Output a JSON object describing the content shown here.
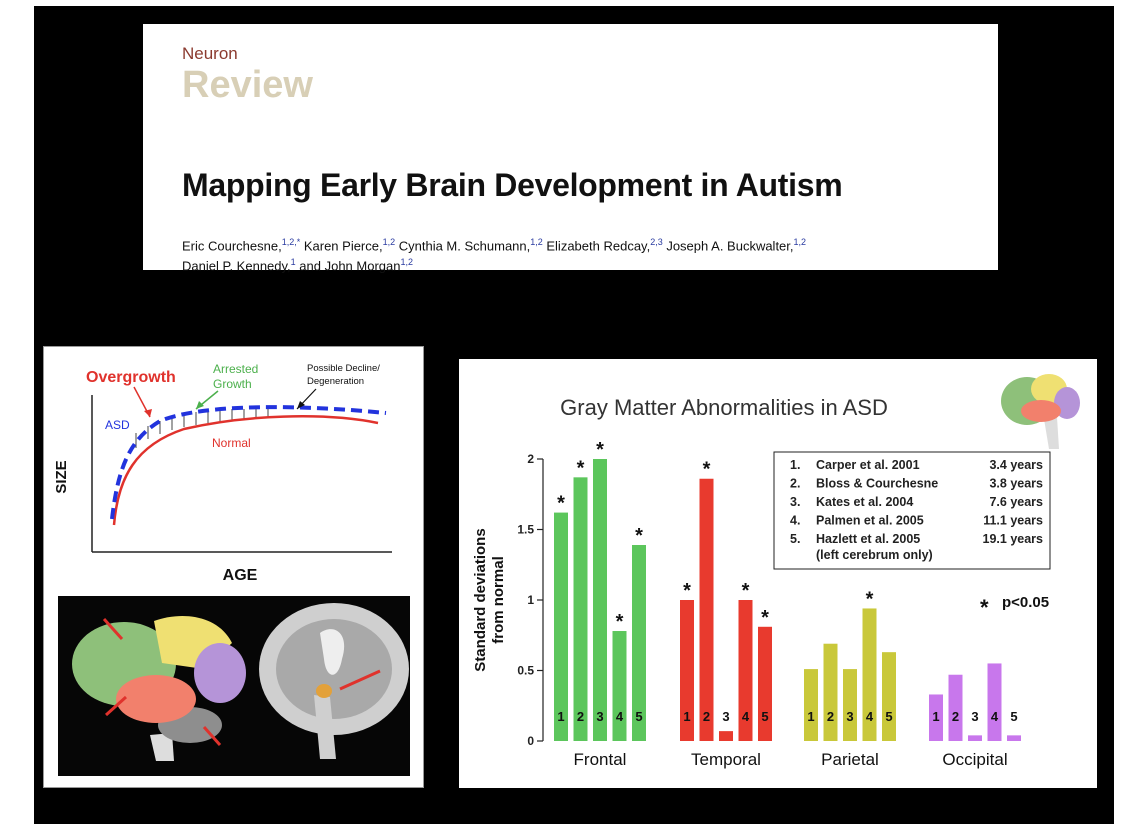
{
  "header": {
    "journal": "Neuron",
    "section": "Review",
    "title": "Mapping Early Brain Development in Autism",
    "authors_line1": [
      {
        "name": "Eric Courchesne,",
        "sup": "1,2,*"
      },
      {
        "name": " Karen Pierce,",
        "sup": "1,2"
      },
      {
        "name": " Cynthia M. Schumann,",
        "sup": "1,2"
      },
      {
        "name": " Elizabeth Redcay,",
        "sup": "2,3"
      },
      {
        "name": " Joseph A. Buckwalter,",
        "sup": "1,2"
      }
    ],
    "authors_line2": [
      {
        "name": "Daniel P. Kennedy,",
        "sup": "1"
      },
      {
        "name": " and John Morgan",
        "sup": "1,2"
      }
    ]
  },
  "growth_diagram": {
    "overgrowth_label": "Overgrowth",
    "arrested_label_1": "Arrested",
    "arrested_label_2": "Growth",
    "decline_label_1": "Possible Decline/",
    "decline_label_2": "Degeneration",
    "asd_label": "ASD",
    "normal_label": "Normal",
    "y_label": "SIZE",
    "x_label": "AGE",
    "colors": {
      "overgrowth": "#e0322c",
      "asd": "#2233dd",
      "arrested": "#4cb04c",
      "normal": "#e0322c"
    }
  },
  "brain_images": {
    "left_icon": "lateral-brain-lobes-icon",
    "right_icon": "midsagittal-brain-mri-icon"
  },
  "chart_data": {
    "type": "bar",
    "title": "Gray Matter Abnormalities in ASD",
    "ylabel_line1": "Standard deviations",
    "ylabel_line2": "from normal",
    "ylim": [
      0,
      2
    ],
    "yticks": [
      "0",
      "0.5",
      "1",
      "1.5",
      "2"
    ],
    "groups": [
      {
        "name": "Frontal",
        "color": "#5cc65c",
        "values": [
          1.62,
          1.87,
          2.0,
          0.78,
          1.39
        ],
        "significant": [
          true,
          true,
          true,
          true,
          true
        ]
      },
      {
        "name": "Temporal",
        "color": "#e83a2e",
        "values": [
          1.0,
          1.86,
          0.07,
          1.0,
          0.81
        ],
        "significant": [
          true,
          true,
          false,
          true,
          true
        ]
      },
      {
        "name": "Parietal",
        "color": "#c9c83a",
        "values": [
          0.51,
          0.69,
          0.51,
          0.94,
          0.63
        ],
        "significant": [
          false,
          false,
          false,
          true,
          false
        ]
      },
      {
        "name": "Occipital",
        "color": "#c877ec",
        "values": [
          0.33,
          0.47,
          0.04,
          0.55,
          0.04
        ],
        "significant": [
          false,
          false,
          false,
          false,
          false
        ]
      }
    ],
    "bar_numbers": [
      "1",
      "2",
      "3",
      "4",
      "5"
    ],
    "star_symbol": "*",
    "legend": [
      {
        "num": "1.",
        "study": "Carper et al. 2001",
        "age": "3.4 years"
      },
      {
        "num": "2.",
        "study": "Bloss  & Courchesne",
        "age": "3.8 years"
      },
      {
        "num": "3.",
        "study": "Kates  et al. 2004",
        "age": "7.6 years"
      },
      {
        "num": "4.",
        "study": "Palmen  et al. 2005",
        "age": "11.1 years"
      },
      {
        "num": "5.",
        "study": "Hazlett  et al. 2005",
        "age": "19.1 years"
      }
    ],
    "legend_note": "(left cerebrum only)",
    "significance": "p<0.05"
  }
}
